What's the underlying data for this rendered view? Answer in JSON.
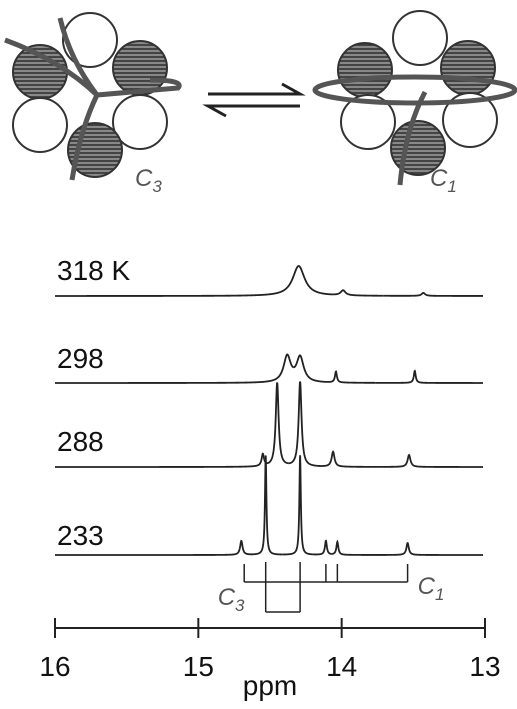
{
  "chart_data": {
    "type": "nmr",
    "xlabel": "ppm",
    "xlim": [
      16,
      13
    ],
    "xticks": [
      16,
      15,
      14,
      13
    ],
    "series": [
      {
        "name": "318 K",
        "peaks": [
          14.3,
          13.99,
          13.43
        ],
        "heights": [
          30,
          5,
          3
        ],
        "widths": [
          0.05,
          0.02,
          0.015
        ]
      },
      {
        "name": "298",
        "peaks": [
          14.38,
          14.29,
          14.04,
          13.49
        ],
        "heights": [
          26,
          25,
          11,
          12
        ],
        "widths": [
          0.03,
          0.03,
          0.008,
          0.008
        ]
      },
      {
        "name": "288",
        "peaks": [
          14.55,
          14.45,
          14.29,
          14.06,
          13.53
        ],
        "heights": [
          12,
          84,
          85,
          15,
          12
        ],
        "widths": [
          0.01,
          0.012,
          0.012,
          0.012,
          0.012
        ]
      },
      {
        "name": "233",
        "peaks": [
          14.7,
          14.53,
          14.29,
          14.11,
          14.03,
          13.54
        ],
        "heights": [
          14,
          100,
          100,
          14,
          13,
          12
        ],
        "widths": [
          0.01,
          0.006,
          0.006,
          0.008,
          0.008,
          0.01
        ]
      }
    ],
    "assignments": [
      {
        "base": "C",
        "sub": "1",
        "lines": [
          14.68,
          14.11,
          14.03,
          13.54
        ]
      },
      {
        "base": "C",
        "sub": "3",
        "lines": [
          14.53,
          14.29
        ]
      }
    ]
  },
  "diagram": {
    "left": {
      "base": "C",
      "sub": "3"
    },
    "right": {
      "base": "C",
      "sub": "1"
    }
  }
}
